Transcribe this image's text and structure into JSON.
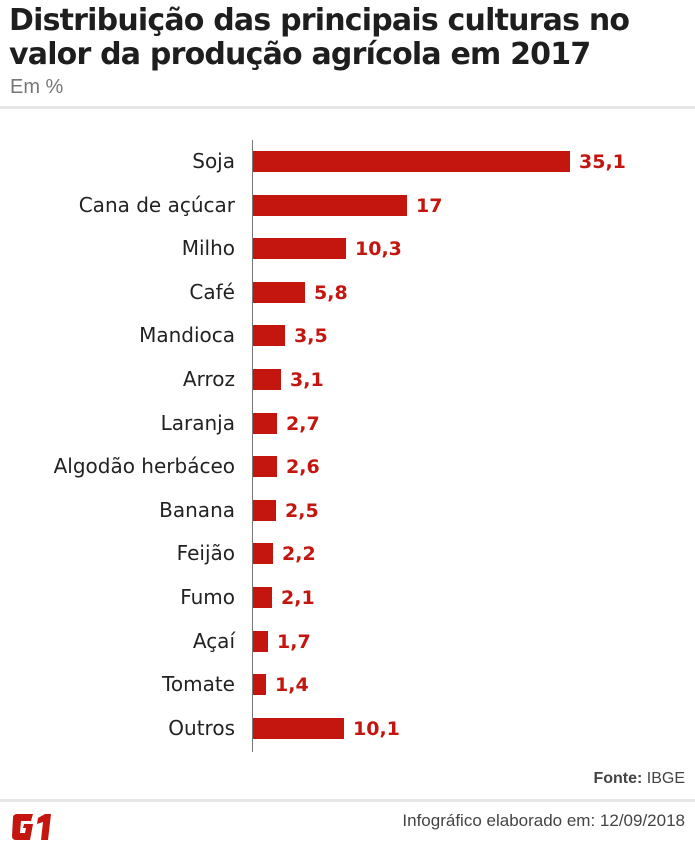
{
  "header": {
    "title": "Distribuição das principais culturas no valor da produção agrícola em 2017",
    "subtitle": "Em %"
  },
  "footer": {
    "source_label": "Fonte:",
    "source_value": " IBGE",
    "credit": "Infográfico elaborado em: 12/09/2018",
    "logo": "G1"
  },
  "colors": {
    "bar": "#c4150f",
    "axis": "#777777"
  },
  "chart_data": {
    "type": "bar",
    "orientation": "horizontal",
    "title": "Distribuição das principais culturas no valor da produção agrícola em 2017",
    "subtitle": "Em %",
    "xlabel": "",
    "ylabel": "",
    "unit": "%",
    "categories": [
      "Soja",
      "Cana de açúcar",
      "Milho",
      "Café",
      "Mandioca",
      "Arroz",
      "Laranja",
      "Algodão herbáceo",
      "Banana",
      "Feijão",
      "Fumo",
      "Açaí",
      "Tomate",
      "Outros"
    ],
    "values": [
      35.1,
      17,
      10.3,
      5.8,
      3.5,
      3.1,
      2.7,
      2.6,
      2.5,
      2.2,
      2.1,
      1.7,
      1.4,
      10.1
    ],
    "value_labels": [
      "35,1",
      "17",
      "10,3",
      "5,8",
      "3,5",
      "3,1",
      "2,7",
      "2,6",
      "2,5",
      "2,2",
      "2,1",
      "1,7",
      "1,4",
      "10,1"
    ],
    "grid": false,
    "legend": null,
    "source": "Fonte: IBGE"
  }
}
